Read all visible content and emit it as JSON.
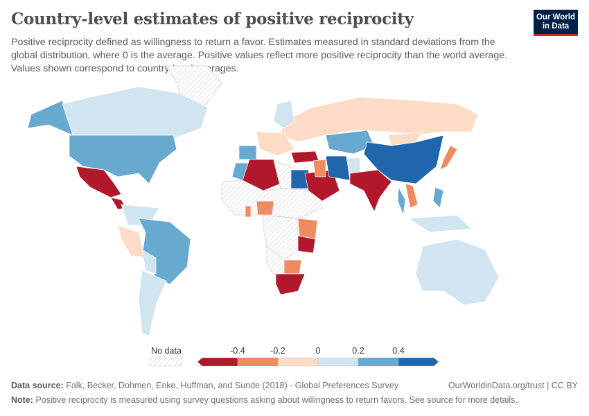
{
  "header": {
    "title": "Country-level estimates of positive reciprocity",
    "subtitle": "Positive reciprocity defined as willingness to return a favor. Estimates measured in standard deviations from the global distribution, where 0 is the average. Positive values reflect more positive reciprocity than the world average. Values shown correspond to country-level averages.",
    "logo_line1": "Our World",
    "logo_line2": "in Data"
  },
  "legend": {
    "no_data_label": "No data",
    "ticks": [
      "-0.4",
      "-0.2",
      "0",
      "0.2",
      "0.4"
    ],
    "bins": [
      {
        "range": "< -0.4",
        "color": "#b2182b"
      },
      {
        "range": "-0.4 to -0.2",
        "color": "#ef8a62"
      },
      {
        "range": "-0.2 to 0",
        "color": "#fddbc7"
      },
      {
        "range": "0 to 0.2",
        "color": "#d1e5f0"
      },
      {
        "range": "0.2 to 0.4",
        "color": "#67a9cf"
      },
      {
        "range": "> 0.4",
        "color": "#2166ac"
      }
    ],
    "no_data_color": "#e0e0e0"
  },
  "map": {
    "regions": {
      "alaska": 4,
      "canada": 3,
      "greenland": -1,
      "usa": 4,
      "mexico": 0,
      "central-america": 0,
      "colombia-venezuela": 3,
      "peru": 2,
      "brazil": 4,
      "bolivia": 3,
      "chile-argentina": 3,
      "russia": 2,
      "scandinavia": 3,
      "western-europe": 2,
      "spain": 4,
      "turkey": 0,
      "morocco": 4,
      "algeria": 0,
      "libya": -1,
      "egypt": 5,
      "sahel": -1,
      "nigeria": 1,
      "ghana": 1,
      "kenya-uganda": 1,
      "tanzania": 0,
      "central-africa": -1,
      "zimbabwe": 1,
      "south-africa": 0,
      "southwest-africa": -1,
      "saudi-arabia": 0,
      "iraq": 1,
      "iran": 5,
      "afghanistan": 3,
      "india": 0,
      "kazakhstan": 4,
      "china": 5,
      "mongolia": 2,
      "japan": 1,
      "vietnam": 1,
      "thailand": 4,
      "philippines": 4,
      "indonesia": 3,
      "australia": 3
    }
  },
  "footer": {
    "source_label": "Data source:",
    "source_text": "Falk, Becker, Dohmen, Enke, Huffman, and Sunde (2018) - Global Preferences Survey",
    "license": "OurWorldinData.org/trust | CC BY",
    "note_label": "Note:",
    "note_text": "Positive reciprocity is measured using survey questions asking about willingness to return favors. See source for more details."
  }
}
